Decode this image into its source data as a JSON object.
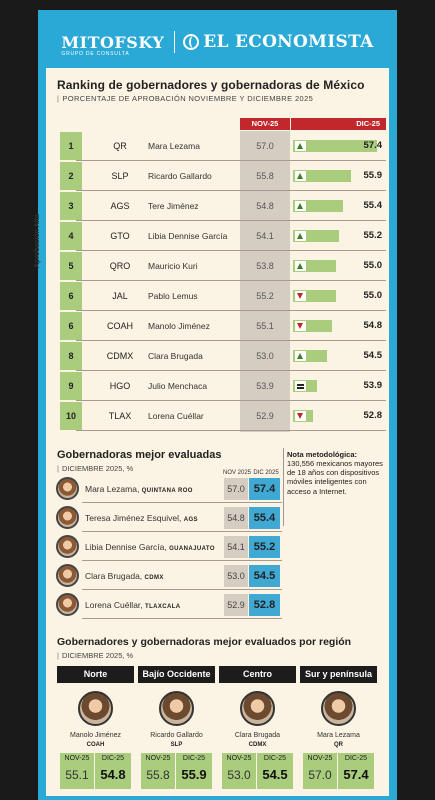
{
  "header": {
    "brand1": "MITOFSKY",
    "brand1_sub": "GRUPO DE CONSULTA",
    "brand2": "EL ECONOMISTA",
    "icons": [
      "mitofsky-logo-icon",
      "el-economista-logo-icon"
    ]
  },
  "chart_data": {
    "type": "bar",
    "title": "Ranking de gobernadores y gobernadoras de México",
    "subtitle": "PORCENTAJE DE APROBACIÓN NOVIEMBRE Y DICIEMBRE 2025",
    "ylabel": "Aprobación Alta",
    "series_labels": {
      "nov": "NOV-25",
      "dic": "DIC-25"
    },
    "xlim": [
      52.5,
      57.4
    ],
    "colors": {
      "bar": "#a9cc7d",
      "nov_header": "#c0282b",
      "dic_header": "#c0282b",
      "up": "#3f7d2a",
      "down": "#c0282b"
    },
    "rows": [
      {
        "rank": "1",
        "state": "QR",
        "name": "Mara Lezama",
        "nov": 57.0,
        "dic": 57.4,
        "trend": "up"
      },
      {
        "rank": "2",
        "state": "SLP",
        "name": "Ricardo Gallardo",
        "nov": 55.8,
        "dic": 55.9,
        "trend": "up"
      },
      {
        "rank": "3",
        "state": "AGS",
        "name": "Tere Jiménez",
        "nov": 54.8,
        "dic": 55.4,
        "trend": "up"
      },
      {
        "rank": "4",
        "state": "GTO",
        "name": "Libia Dennise García",
        "nov": 54.1,
        "dic": 55.2,
        "trend": "up"
      },
      {
        "rank": "5",
        "state": "QRO",
        "name": "Mauricio Kuri",
        "nov": 53.8,
        "dic": 55.0,
        "trend": "up"
      },
      {
        "rank": "6",
        "state": "JAL",
        "name": "Pablo Lemus",
        "nov": 55.2,
        "dic": 55.0,
        "trend": "down"
      },
      {
        "rank": "6",
        "state": "COAH",
        "name": "Manolo Jiménez",
        "nov": 55.1,
        "dic": 54.8,
        "trend": "down"
      },
      {
        "rank": "8",
        "state": "CDMX",
        "name": "Clara Brugada",
        "nov": 53.0,
        "dic": 54.5,
        "trend": "up"
      },
      {
        "rank": "9",
        "state": "HGO",
        "name": "Julio Menchaca",
        "nov": 53.9,
        "dic": 53.9,
        "trend": "equal"
      },
      {
        "rank": "10",
        "state": "TLAX",
        "name": "Lorena Cuéllar",
        "nov": 52.9,
        "dic": 52.8,
        "trend": "down"
      }
    ]
  },
  "women": {
    "title": "Gobernadoras mejor evaluadas",
    "subtitle": "DICIEMBRE 2025, %",
    "col_nov": "NOV 2025",
    "col_dic": "DIC 2025",
    "colors": {
      "nov_bg": "#d6cdc2",
      "dic_bg": "#40a9d3"
    },
    "items": [
      {
        "name": "Mara Lezama,",
        "state": "QUINTANA ROO",
        "nov": "57.0",
        "dic": "57.4"
      },
      {
        "name": "Teresa Jiménez Esquivel,",
        "state": "AGS",
        "nov": "54.8",
        "dic": "55.4"
      },
      {
        "name": "Libia Dennise García,",
        "state": "GUANAJUATO",
        "nov": "54.1",
        "dic": "55.2"
      },
      {
        "name": "Clara Brugada,",
        "state": "CDMX",
        "nov": "53.0",
        "dic": "54.5"
      },
      {
        "name": "Lorena Cuéllar,",
        "state": "TLAXCALA",
        "nov": "52.9",
        "dic": "52.8"
      }
    ]
  },
  "note": {
    "title": "Nota metodológica:",
    "text": "130,556 mexicanos mayores de 18 años con dispositivos móviles inteligentes con acceso a Internet."
  },
  "regions": {
    "title": "Gobernadores y gobernadoras mejor evaluados por región",
    "subtitle": "DICIEMBRE 2025, %",
    "nov_label": "NOV-25",
    "dic_label": "DIC-25",
    "items": [
      {
        "region": "Norte",
        "name": "Manolo Jiménez",
        "state": "COAH",
        "nov": "55.1",
        "dic": "54.8"
      },
      {
        "region": "Bajío Occidente",
        "name": "Ricardo Gallardo",
        "state": "SLP",
        "nov": "55.8",
        "dic": "55.9"
      },
      {
        "region": "Centro",
        "name": "Clara Brugada",
        "state": "CDMX",
        "nov": "53.0",
        "dic": "54.5"
      },
      {
        "region": "Sur y península",
        "name": "Mara Lezama",
        "state": "QR",
        "nov": "57.0",
        "dic": "57.4"
      }
    ]
  }
}
